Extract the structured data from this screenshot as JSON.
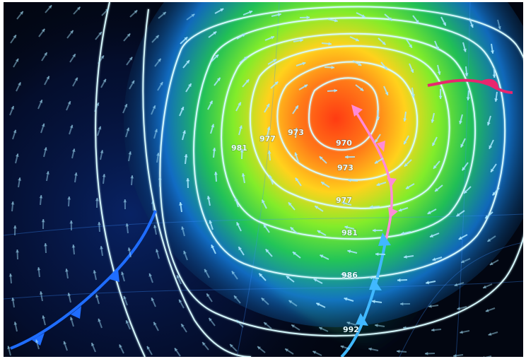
{
  "map": {
    "description_colors": {
      "background": "#020611",
      "storm_core": "#ff5a1a",
      "warm_band": "#ffd21c",
      "mid_band": "#37e02a",
      "outer_band": "#1b6cff",
      "isobar_line": "#d8fbff",
      "cold_front": "#40b8ff",
      "occluded_front": "#ff7ad9",
      "warm_front": "#e8266e"
    },
    "isobars": [
      {
        "value": "970"
      },
      {
        "value": "973"
      },
      {
        "value": "973"
      },
      {
        "value": "977"
      },
      {
        "value": "977"
      },
      {
        "value": "981"
      },
      {
        "value": "981"
      },
      {
        "value": "986"
      },
      {
        "value": "992"
      }
    ],
    "icons": [
      "wind-arrow-icon",
      "cold-front-triangle-icon",
      "occluded-front-icon"
    ]
  }
}
